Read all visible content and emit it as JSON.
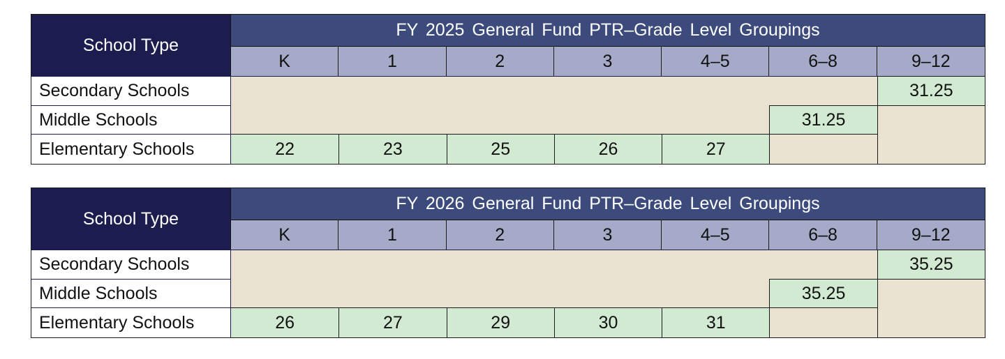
{
  "tables": [
    {
      "school_type_header": "School Type",
      "title": "FY 2025  General Fund  PTR–Grade Level Groupings",
      "grades": [
        "K",
        "1",
        "2",
        "3",
        "4–5",
        "6–8",
        "9–12"
      ],
      "secondary": {
        "label": "Secondary Schools",
        "value": "31.25"
      },
      "middle": {
        "label": "Middle Schools",
        "value": "31.25"
      },
      "elementary": {
        "label": "Elementary Schools",
        "values": [
          "22",
          "23",
          "25",
          "26",
          "27"
        ]
      }
    },
    {
      "school_type_header": "School Type",
      "title": "FY 2026  General Fund  PTR–Grade Level Groupings",
      "grades": [
        "K",
        "1",
        "2",
        "3",
        "4–5",
        "6–8",
        "9–12"
      ],
      "secondary": {
        "label": "Secondary Schools",
        "value": "35.25"
      },
      "middle": {
        "label": "Middle Schools",
        "value": "35.25"
      },
      "elementary": {
        "label": "Elementary Schools",
        "values": [
          "26",
          "27",
          "29",
          "30",
          "31"
        ]
      }
    }
  ],
  "colors": {
    "header_dark": "#1c1d4e",
    "header_title": "#3c4b7c",
    "grade_header": "#a4aac8",
    "empty_fill": "#ebe3d1",
    "value_fill": "#d2ead2"
  }
}
